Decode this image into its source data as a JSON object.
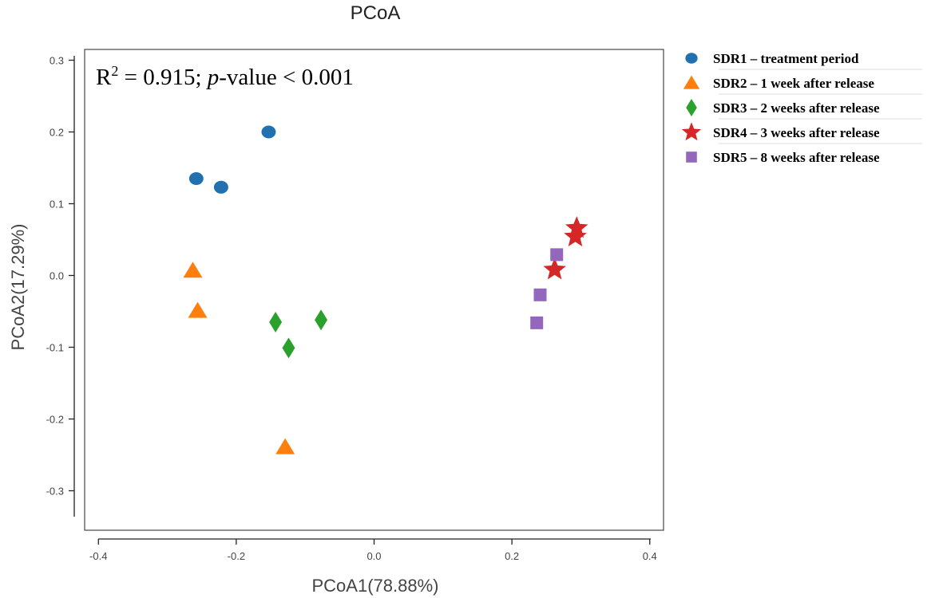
{
  "chart_data": {
    "type": "scatter",
    "title": "PCoA",
    "xlabel": "PCoA1(78.88%)",
    "ylabel": "PCoA2(17.29%)",
    "xlim": [
      -0.42,
      0.42
    ],
    "ylim": [
      -0.355,
      0.315
    ],
    "xticks": [
      -0.4,
      -0.2,
      0.0,
      0.2,
      0.4
    ],
    "xtick_labels": [
      "-0.4",
      "-0.2",
      "0.0",
      "0.2",
      "0.4"
    ],
    "yticks": [
      0.3,
      0.2,
      0.1,
      0.0,
      -0.1,
      -0.2,
      -0.3
    ],
    "ytick_labels": [
      "0.3",
      "0.2",
      "0.1",
      "0.0",
      "-0.1",
      "-0.2",
      "-0.3"
    ],
    "annotation": {
      "prefix": "R",
      "superscript": "2",
      "r2_text": " = 0.915; ",
      "p_label": "p",
      "p_text": "-value < 0.001"
    },
    "legend_position": "right",
    "series": [
      {
        "name": "SDR1 – treatment period",
        "marker": "circle",
        "color": "#2170b0",
        "points": [
          {
            "x": -0.258,
            "y": 0.135
          },
          {
            "x": -0.222,
            "y": 0.123
          },
          {
            "x": -0.153,
            "y": 0.2
          }
        ]
      },
      {
        "name": "SDR2 – 1 week after release",
        "marker": "triangle",
        "color": "#ff7f0e",
        "points": [
          {
            "x": -0.263,
            "y": 0.007
          },
          {
            "x": -0.256,
            "y": -0.049
          },
          {
            "x": -0.129,
            "y": -0.239
          }
        ]
      },
      {
        "name": "SDR3 – 2 weeks after release",
        "marker": "diamond",
        "color": "#2ca02c",
        "points": [
          {
            "x": -0.143,
            "y": -0.065
          },
          {
            "x": -0.124,
            "y": -0.101
          },
          {
            "x": -0.077,
            "y": -0.062
          }
        ]
      },
      {
        "name": "SDR4 – 3 weeks after release",
        "marker": "star",
        "color": "#d62728",
        "points": [
          {
            "x": 0.262,
            "y": 0.008
          },
          {
            "x": 0.292,
            "y": 0.054
          },
          {
            "x": 0.294,
            "y": 0.066
          }
        ]
      },
      {
        "name": "SDR5 – 8 weeks after release",
        "marker": "square",
        "color": "#9467bd",
        "points": [
          {
            "x": 0.236,
            "y": -0.066
          },
          {
            "x": 0.241,
            "y": -0.027
          },
          {
            "x": 0.265,
            "y": 0.029
          }
        ]
      }
    ]
  }
}
